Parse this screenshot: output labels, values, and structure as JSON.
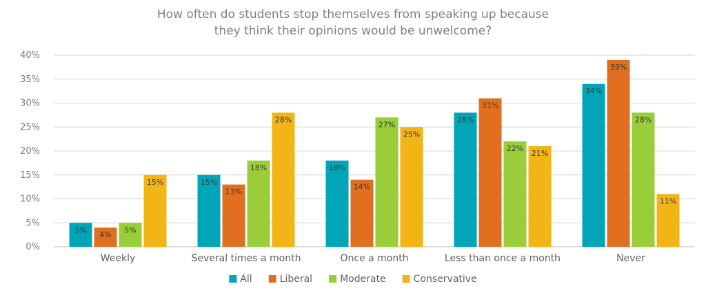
{
  "chart_data": {
    "type": "bar",
    "title": "How often do students stop themselves from speaking up because they think their opinions would be unwelcome?",
    "title_lines": [
      "How often do students stop themselves from speaking up because",
      "they think their opinions would be unwelcome?"
    ],
    "categories": [
      "Weekly",
      "Several times a month",
      "Once a month",
      "Less than once a month",
      "Never"
    ],
    "series": [
      {
        "name": "All",
        "values": [
          5,
          15,
          18,
          28,
          34
        ],
        "color": "#00a6b8"
      },
      {
        "name": "Liberal",
        "values": [
          4,
          13,
          14,
          31,
          39
        ],
        "color": "#e07020"
      },
      {
        "name": "Moderate",
        "values": [
          5,
          18,
          27,
          22,
          28
        ],
        "color": "#9acd3a"
      },
      {
        "name": "Conservative",
        "values": [
          15,
          28,
          25,
          21,
          11
        ],
        "color": "#f2b416"
      }
    ],
    "y_tick_labels": [
      "0%",
      "5%",
      "10%",
      "15%",
      "20%",
      "25%",
      "30%",
      "35%",
      "40%"
    ],
    "data_label_suffix": "%",
    "ylim": [
      0,
      40
    ],
    "xlabel": "",
    "ylabel": "",
    "grid": true,
    "legend_position": "bottom"
  }
}
